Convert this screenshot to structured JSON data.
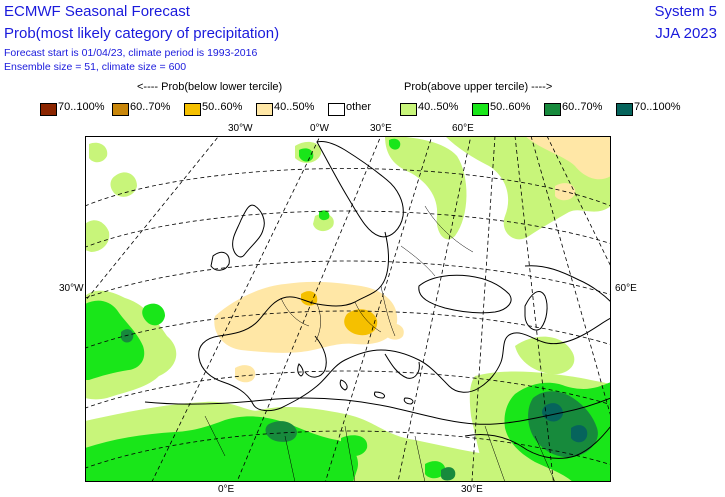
{
  "header": {
    "title": "ECMWF Seasonal Forecast",
    "subtitle": "Prob(most likely category of precipitation)",
    "forecast_info": "Forecast start is 01/04/23, climate period is 1993-2016",
    "ensemble_info": "Ensemble size = 51, climate size = 600",
    "system": "System 5",
    "season": "JJA 2023"
  },
  "legend": {
    "below_heading": "<---- Prob(below lower tercile)",
    "above_heading": "Prob(above upper tercile) ---->",
    "items": [
      {
        "label": "70..100%",
        "color": "#8b2500"
      },
      {
        "label": "60..70%",
        "color": "#c8860a"
      },
      {
        "label": "50..60%",
        "color": "#f5c000"
      },
      {
        "label": "40..50%",
        "color": "#ffe7a6"
      },
      {
        "label": "other",
        "color": "#ffffff"
      },
      {
        "label": "40..50%",
        "color": "#c8f57a"
      },
      {
        "label": "50..60%",
        "color": "#19e619"
      },
      {
        "label": "60..70%",
        "color": "#178a3c"
      },
      {
        "label": "70..100%",
        "color": "#06645c"
      }
    ]
  },
  "map": {
    "top_labels": [
      "30°W",
      "0°W",
      "30°E",
      "60°E"
    ],
    "left_label": "30°W",
    "right_label": "60°E",
    "bottom_labels": [
      "0°E",
      "30°E"
    ]
  }
}
